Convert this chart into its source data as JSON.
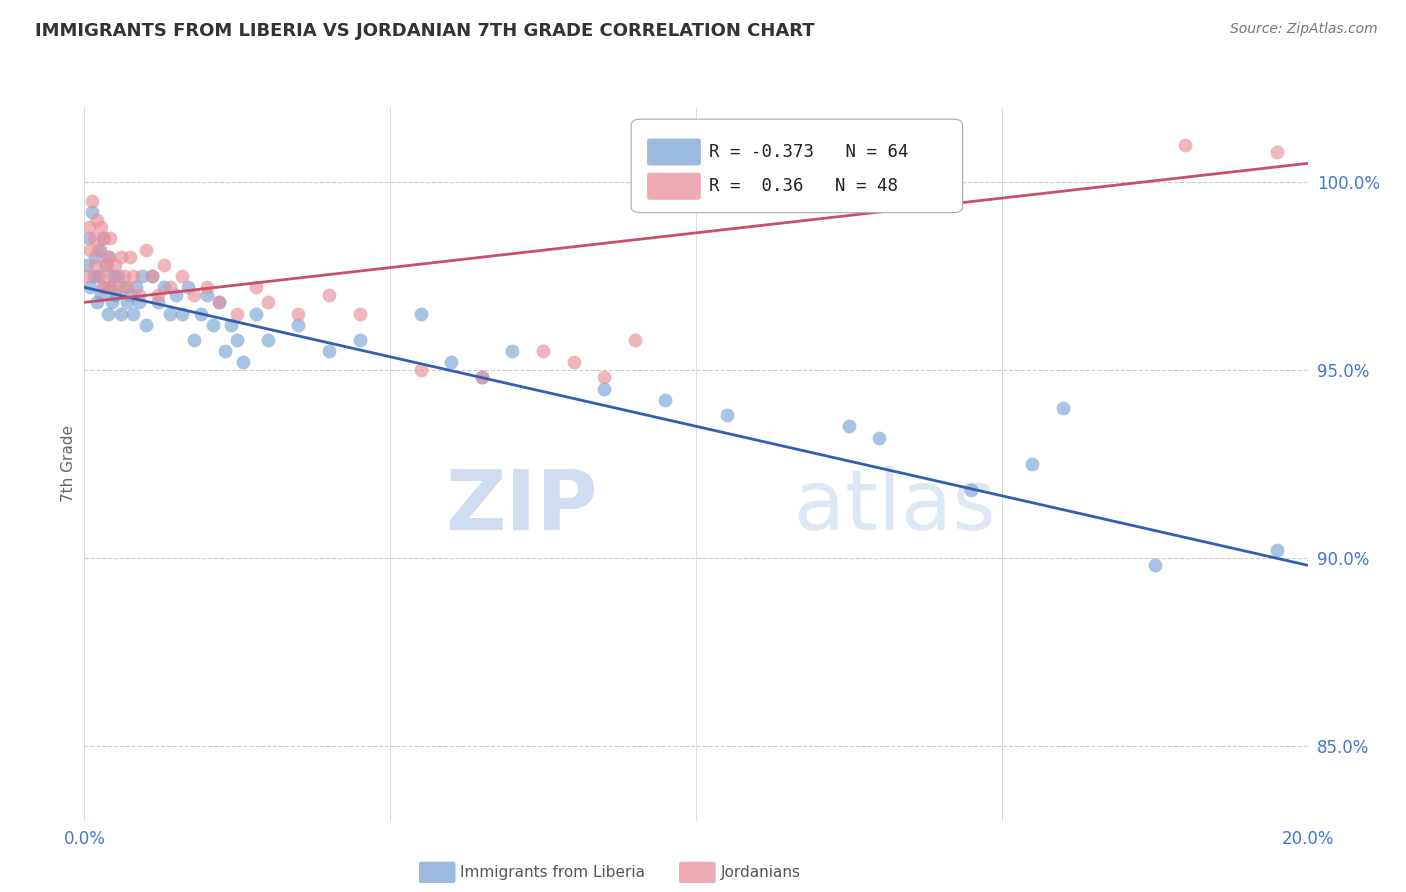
{
  "title": "IMMIGRANTS FROM LIBERIA VS JORDANIAN 7TH GRADE CORRELATION CHART",
  "source": "Source: ZipAtlas.com",
  "ylabel": "7th Grade",
  "watermark_zip": "ZIP",
  "watermark_atlas": "atlas",
  "blue_label": "Immigrants from Liberia",
  "pink_label": "Jordanians",
  "blue_R": -0.373,
  "pink_R": 0.36,
  "blue_N": 64,
  "pink_N": 48,
  "xlim": [
    0.0,
    20.0
  ],
  "ylim": [
    83.0,
    102.0
  ],
  "yticks": [
    85.0,
    90.0,
    95.0,
    100.0
  ],
  "ytick_labels": [
    "85.0%",
    "90.0%",
    "95.0%",
    "100.0%"
  ],
  "xticks": [
    0.0,
    5.0,
    10.0,
    15.0,
    20.0
  ],
  "xtick_labels_show": [
    "0.0%",
    "",
    "",
    "",
    "20.0%"
  ],
  "blue_color": "#7ba3d4",
  "pink_color": "#e8909a",
  "blue_line_color": "#3060b0",
  "pink_line_color": "#c8506a",
  "title_color": "#333333",
  "axis_label_color": "#4477cc",
  "grid_color": "#cccccc",
  "background": "#ffffff",
  "blue_line_x": [
    0.0,
    20.0
  ],
  "blue_line_y": [
    97.2,
    89.8
  ],
  "pink_line_x": [
    0.0,
    20.0
  ],
  "pink_line_y": [
    96.8,
    100.5
  ],
  "blue_x": [
    0.05,
    0.08,
    0.1,
    0.12,
    0.15,
    0.18,
    0.2,
    0.22,
    0.25,
    0.28,
    0.3,
    0.32,
    0.35,
    0.38,
    0.4,
    0.42,
    0.45,
    0.48,
    0.5,
    0.55,
    0.6,
    0.65,
    0.7,
    0.75,
    0.8,
    0.85,
    0.9,
    0.95,
    1.0,
    1.1,
    1.2,
    1.3,
    1.4,
    1.5,
    1.6,
    1.7,
    1.8,
    1.9,
    2.0,
    2.1,
    2.2,
    2.3,
    2.4,
    2.5,
    2.6,
    2.8,
    3.0,
    3.5,
    4.0,
    4.5,
    5.5,
    6.0,
    6.5,
    7.0,
    8.5,
    9.5,
    10.5,
    12.5,
    13.0,
    14.5,
    15.5,
    16.0,
    17.5,
    19.5
  ],
  "blue_y": [
    97.8,
    98.5,
    97.2,
    99.2,
    97.5,
    98.0,
    96.8,
    97.5,
    98.2,
    97.0,
    98.5,
    97.2,
    97.8,
    96.5,
    98.0,
    97.2,
    96.8,
    97.5,
    97.0,
    97.5,
    96.5,
    97.2,
    96.8,
    97.0,
    96.5,
    97.2,
    96.8,
    97.5,
    96.2,
    97.5,
    96.8,
    97.2,
    96.5,
    97.0,
    96.5,
    97.2,
    95.8,
    96.5,
    97.0,
    96.2,
    96.8,
    95.5,
    96.2,
    95.8,
    95.2,
    96.5,
    95.8,
    96.2,
    95.5,
    95.8,
    96.5,
    95.2,
    94.8,
    95.5,
    94.5,
    94.2,
    93.8,
    93.5,
    93.2,
    91.8,
    92.5,
    94.0,
    89.8,
    90.2
  ],
  "pink_x": [
    0.05,
    0.08,
    0.1,
    0.12,
    0.15,
    0.18,
    0.2,
    0.22,
    0.25,
    0.28,
    0.3,
    0.32,
    0.35,
    0.38,
    0.4,
    0.42,
    0.45,
    0.5,
    0.55,
    0.6,
    0.65,
    0.7,
    0.75,
    0.8,
    0.9,
    1.0,
    1.1,
    1.2,
    1.3,
    1.4,
    1.6,
    1.8,
    2.0,
    2.2,
    2.5,
    2.8,
    3.0,
    3.5,
    4.0,
    4.5,
    5.5,
    6.5,
    7.5,
    8.0,
    8.5,
    9.0,
    18.0,
    19.5
  ],
  "pink_y": [
    97.5,
    98.8,
    98.2,
    99.5,
    98.5,
    97.8,
    99.0,
    98.2,
    97.5,
    98.8,
    97.2,
    98.5,
    97.8,
    98.0,
    97.2,
    98.5,
    97.5,
    97.8,
    97.2,
    98.0,
    97.5,
    97.2,
    98.0,
    97.5,
    97.0,
    98.2,
    97.5,
    97.0,
    97.8,
    97.2,
    97.5,
    97.0,
    97.2,
    96.8,
    96.5,
    97.2,
    96.8,
    96.5,
    97.0,
    96.5,
    95.0,
    94.8,
    95.5,
    95.2,
    94.8,
    95.8,
    101.0,
    100.8
  ]
}
